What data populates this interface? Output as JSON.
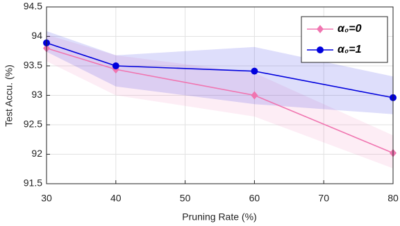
{
  "chart_data": {
    "type": "line",
    "x_label": "Pruning Rate (%)",
    "y_label": "Test Accu. (%)",
    "x": [
      30,
      40,
      60,
      80
    ],
    "series": [
      {
        "name": "α₀=0",
        "color": "#f075b0",
        "marker": "diamond",
        "values": [
          93.8,
          93.44,
          93.0,
          92.02
        ],
        "upper": [
          94.03,
          93.68,
          93.38,
          92.32
        ],
        "lower": [
          93.58,
          93.0,
          92.64,
          91.76
        ]
      },
      {
        "name": "α₀=1",
        "color": "#0000dd",
        "marker": "circle",
        "values": [
          93.89,
          93.5,
          93.41,
          92.96
        ],
        "upper": [
          94.09,
          93.68,
          93.82,
          93.32
        ],
        "lower": [
          93.74,
          93.15,
          92.85,
          92.68
        ]
      }
    ],
    "xlim": [
      30,
      80
    ],
    "xticks": [
      30,
      40,
      50,
      60,
      70,
      80
    ],
    "ylim": [
      91.5,
      94.5
    ],
    "yticks": [
      91.5,
      92,
      92.5,
      93,
      93.5,
      94,
      94.5
    ],
    "grid": true,
    "legend_position": "upper-right"
  }
}
